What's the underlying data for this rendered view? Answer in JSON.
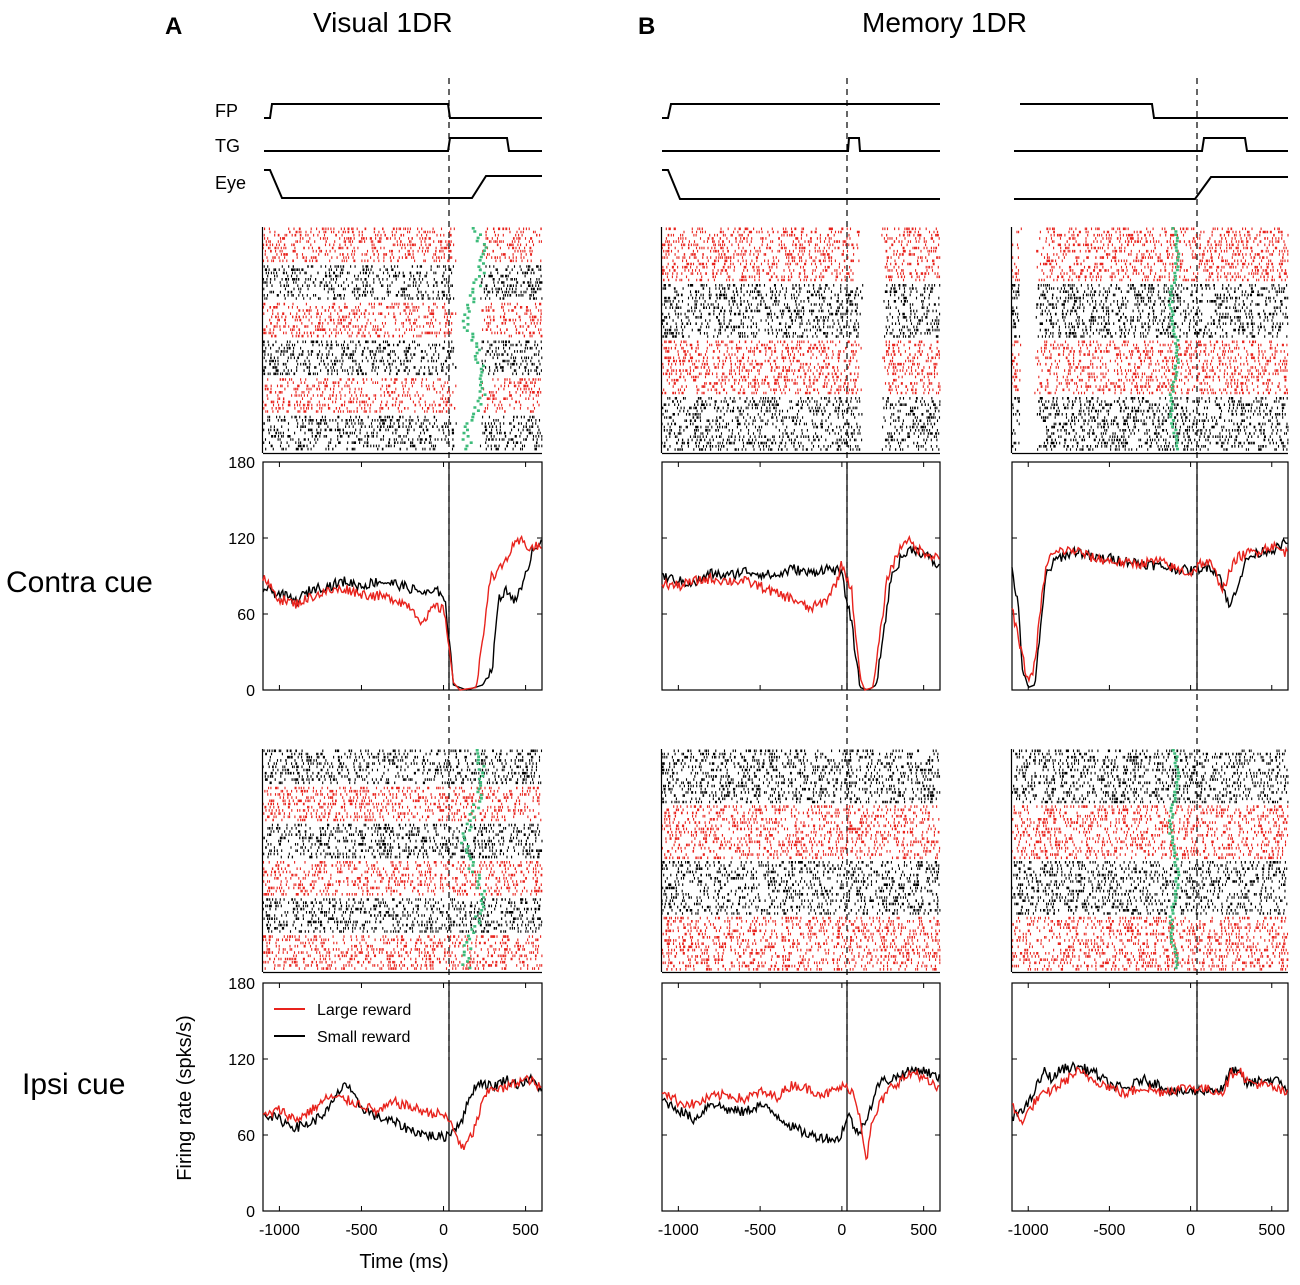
{
  "panels": {
    "a": {
      "letter": "A",
      "title": "Visual 1DR"
    },
    "b": {
      "letter": "B",
      "title": "Memory 1DR"
    }
  },
  "row_labels": {
    "contra": "Contra cue",
    "ipsi": "Ipsi cue"
  },
  "event_labels": {
    "fp": "FP",
    "tg": "TG",
    "eye": "Eye"
  },
  "legend": {
    "large": "Large reward",
    "small": "Small reward"
  },
  "axes": {
    "xlabel": "Time (ms)",
    "ylabel": "Firing rate (spks/s)"
  },
  "colors": {
    "large": "#e8231d",
    "small": "#000000",
    "saccade": "#3dbb7a"
  },
  "chart_data": {
    "type": "line",
    "xlim": [
      -1100,
      600
    ],
    "ylim": [
      0,
      180
    ],
    "xticks": [
      -1000,
      -500,
      0,
      500
    ],
    "yticks": [
      0,
      60,
      120,
      180
    ],
    "tick_labels": {
      "x": [
        "-1000",
        "-500",
        "0",
        "500"
      ],
      "y": [
        "0",
        "60",
        "120",
        "180"
      ]
    },
    "series_names": [
      "Large reward",
      "Small reward"
    ],
    "columns": [
      {
        "name": "Visual 1DR (aligned to fixation point offset)",
        "contra": {
          "large": [
            [
              -1100,
              88
            ],
            [
              -1000,
              72
            ],
            [
              -900,
              68
            ],
            [
              -800,
              74
            ],
            [
              -700,
              78
            ],
            [
              -600,
              80
            ],
            [
              -500,
              76
            ],
            [
              -400,
              74
            ],
            [
              -300,
              72
            ],
            [
              -200,
              66
            ],
            [
              -120,
              52
            ],
            [
              -60,
              66
            ],
            [
              -10,
              64
            ],
            [
              10,
              60
            ],
            [
              60,
              6
            ],
            [
              100,
              0
            ],
            [
              200,
              2
            ],
            [
              240,
              40
            ],
            [
              280,
              88
            ],
            [
              350,
              96
            ],
            [
              420,
              112
            ],
            [
              470,
              118
            ],
            [
              530,
              112
            ],
            [
              600,
              114
            ]
          ],
          "small": [
            [
              -1100,
              80
            ],
            [
              -1000,
              76
            ],
            [
              -900,
              70
            ],
            [
              -800,
              80
            ],
            [
              -700,
              82
            ],
            [
              -600,
              86
            ],
            [
              -500,
              82
            ],
            [
              -400,
              86
            ],
            [
              -300,
              84
            ],
            [
              -200,
              80
            ],
            [
              -100,
              76
            ],
            [
              -10,
              78
            ],
            [
              10,
              70
            ],
            [
              60,
              4
            ],
            [
              140,
              0
            ],
            [
              240,
              4
            ],
            [
              300,
              20
            ],
            [
              330,
              70
            ],
            [
              380,
              78
            ],
            [
              430,
              72
            ],
            [
              480,
              80
            ],
            [
              540,
              110
            ],
            [
              600,
              120
            ]
          ]
        },
        "ipsi": {
          "large": [
            [
              -1100,
              74
            ],
            [
              -1000,
              80
            ],
            [
              -900,
              72
            ],
            [
              -800,
              80
            ],
            [
              -700,
              90
            ],
            [
              -600,
              88
            ],
            [
              -500,
              84
            ],
            [
              -400,
              78
            ],
            [
              -300,
              86
            ],
            [
              -200,
              82
            ],
            [
              -100,
              78
            ],
            [
              0,
              76
            ],
            [
              50,
              68
            ],
            [
              120,
              48
            ],
            [
              180,
              62
            ],
            [
              250,
              90
            ],
            [
              300,
              98
            ],
            [
              360,
              96
            ],
            [
              450,
              102
            ],
            [
              520,
              104
            ],
            [
              600,
              96
            ]
          ],
          "small": [
            [
              -1100,
              78
            ],
            [
              -1000,
              72
            ],
            [
              -900,
              66
            ],
            [
              -800,
              70
            ],
            [
              -700,
              80
            ],
            [
              -600,
              102
            ],
            [
              -550,
              90
            ],
            [
              -500,
              82
            ],
            [
              -400,
              74
            ],
            [
              -300,
              70
            ],
            [
              -200,
              64
            ],
            [
              -100,
              60
            ],
            [
              0,
              58
            ],
            [
              60,
              64
            ],
            [
              120,
              74
            ],
            [
              170,
              94
            ],
            [
              220,
              102
            ],
            [
              300,
              98
            ],
            [
              380,
              104
            ],
            [
              450,
              100
            ],
            [
              530,
              104
            ],
            [
              600,
              96
            ]
          ]
        }
      },
      {
        "name": "Memory 1DR (aligned to fixation point offset)",
        "contra": {
          "large": [
            [
              -1100,
              84
            ],
            [
              -1000,
              82
            ],
            [
              -900,
              86
            ],
            [
              -800,
              88
            ],
            [
              -700,
              86
            ],
            [
              -600,
              86
            ],
            [
              -500,
              82
            ],
            [
              -400,
              76
            ],
            [
              -300,
              72
            ],
            [
              -200,
              64
            ],
            [
              -100,
              70
            ],
            [
              -30,
              86
            ],
            [
              0,
              100
            ],
            [
              60,
              78
            ],
            [
              110,
              10
            ],
            [
              140,
              0
            ],
            [
              190,
              2
            ],
            [
              230,
              40
            ],
            [
              280,
              90
            ],
            [
              350,
              110
            ],
            [
              390,
              120
            ],
            [
              450,
              112
            ],
            [
              520,
              108
            ],
            [
              600,
              104
            ]
          ],
          "small": [
            [
              -1100,
              90
            ],
            [
              -1000,
              86
            ],
            [
              -900,
              84
            ],
            [
              -800,
              92
            ],
            [
              -700,
              90
            ],
            [
              -600,
              94
            ],
            [
              -500,
              92
            ],
            [
              -400,
              90
            ],
            [
              -300,
              96
            ],
            [
              -200,
              92
            ],
            [
              -100,
              96
            ],
            [
              -20,
              94
            ],
            [
              0,
              90
            ],
            [
              60,
              52
            ],
            [
              110,
              2
            ],
            [
              160,
              0
            ],
            [
              210,
              4
            ],
            [
              260,
              50
            ],
            [
              300,
              88
            ],
            [
              360,
              104
            ],
            [
              430,
              112
            ],
            [
              520,
              106
            ],
            [
              600,
              96
            ]
          ]
        },
        "ipsi": {
          "large": [
            [
              -1100,
              96
            ],
            [
              -1000,
              86
            ],
            [
              -900,
              84
            ],
            [
              -800,
              90
            ],
            [
              -700,
              92
            ],
            [
              -600,
              88
            ],
            [
              -500,
              94
            ],
            [
              -400,
              90
            ],
            [
              -300,
              100
            ],
            [
              -200,
              96
            ],
            [
              -100,
              92
            ],
            [
              0,
              98
            ],
            [
              60,
              96
            ],
            [
              110,
              76
            ],
            [
              150,
              40
            ],
            [
              180,
              66
            ],
            [
              230,
              84
            ],
            [
              300,
              98
            ],
            [
              370,
              104
            ],
            [
              450,
              110
            ],
            [
              520,
              102
            ],
            [
              600,
              96
            ]
          ],
          "small": [
            [
              -1100,
              88
            ],
            [
              -1000,
              80
            ],
            [
              -900,
              72
            ],
            [
              -800,
              86
            ],
            [
              -700,
              80
            ],
            [
              -600,
              78
            ],
            [
              -500,
              84
            ],
            [
              -400,
              76
            ],
            [
              -300,
              66
            ],
            [
              -200,
              60
            ],
            [
              -100,
              58
            ],
            [
              -20,
              56
            ],
            [
              40,
              76
            ],
            [
              100,
              60
            ],
            [
              170,
              80
            ],
            [
              230,
              102
            ],
            [
              300,
              104
            ],
            [
              370,
              108
            ],
            [
              450,
              112
            ],
            [
              520,
              110
            ],
            [
              600,
              104
            ]
          ]
        }
      },
      {
        "name": "Memory 1DR (aligned to saccade onset)",
        "contra": {
          "large": [
            [
              -1100,
              64
            ],
            [
              -1060,
              40
            ],
            [
              -1000,
              6
            ],
            [
              -960,
              20
            ],
            [
              -920,
              70
            ],
            [
              -880,
              104
            ],
            [
              -800,
              110
            ],
            [
              -700,
              110
            ],
            [
              -600,
              104
            ],
            [
              -500,
              102
            ],
            [
              -400,
              100
            ],
            [
              -300,
              100
            ],
            [
              -200,
              102
            ],
            [
              -100,
              96
            ],
            [
              0,
              92
            ],
            [
              60,
              100
            ],
            [
              120,
              100
            ],
            [
              200,
              80
            ],
            [
              280,
              104
            ],
            [
              350,
              108
            ],
            [
              420,
              110
            ],
            [
              500,
              114
            ],
            [
              560,
              110
            ],
            [
              600,
              108
            ]
          ],
          "small": [
            [
              -1100,
              96
            ],
            [
              -1060,
              64
            ],
            [
              -1040,
              20
            ],
            [
              -1000,
              2
            ],
            [
              -960,
              4
            ],
            [
              -930,
              40
            ],
            [
              -890,
              92
            ],
            [
              -820,
              104
            ],
            [
              -700,
              110
            ],
            [
              -600,
              104
            ],
            [
              -500,
              104
            ],
            [
              -400,
              102
            ],
            [
              -300,
              100
            ],
            [
              -200,
              98
            ],
            [
              -100,
              96
            ],
            [
              0,
              94
            ],
            [
              60,
              96
            ],
            [
              120,
              98
            ],
            [
              180,
              90
            ],
            [
              240,
              64
            ],
            [
              290,
              84
            ],
            [
              350,
              104
            ],
            [
              450,
              110
            ],
            [
              540,
              112
            ],
            [
              600,
              118
            ]
          ]
        },
        "ipsi": {
          "large": [
            [
              -1100,
              84
            ],
            [
              -1050,
              70
            ],
            [
              -1000,
              78
            ],
            [
              -950,
              88
            ],
            [
              -900,
              92
            ],
            [
              -800,
              100
            ],
            [
              -700,
              110
            ],
            [
              -600,
              104
            ],
            [
              -500,
              98
            ],
            [
              -400,
              92
            ],
            [
              -300,
              98
            ],
            [
              -200,
              94
            ],
            [
              -100,
              96
            ],
            [
              0,
              98
            ],
            [
              100,
              96
            ],
            [
              200,
              94
            ],
            [
              250,
              108
            ],
            [
              300,
              112
            ],
            [
              350,
              102
            ],
            [
              420,
              100
            ],
            [
              500,
              98
            ],
            [
              600,
              92
            ]
          ],
          "small": [
            [
              -1100,
              72
            ],
            [
              -1050,
              80
            ],
            [
              -1000,
              84
            ],
            [
              -950,
              98
            ],
            [
              -900,
              110
            ],
            [
              -850,
              104
            ],
            [
              -800,
              112
            ],
            [
              -700,
              114
            ],
            [
              -600,
              110
            ],
            [
              -500,
              100
            ],
            [
              -400,
              96
            ],
            [
              -300,
              104
            ],
            [
              -200,
              100
            ],
            [
              -100,
              94
            ],
            [
              0,
              94
            ],
            [
              100,
              96
            ],
            [
              200,
              96
            ],
            [
              250,
              112
            ],
            [
              300,
              108
            ],
            [
              350,
              100
            ],
            [
              450,
              104
            ],
            [
              550,
              102
            ],
            [
              600,
              96
            ]
          ]
        }
      }
    ]
  }
}
